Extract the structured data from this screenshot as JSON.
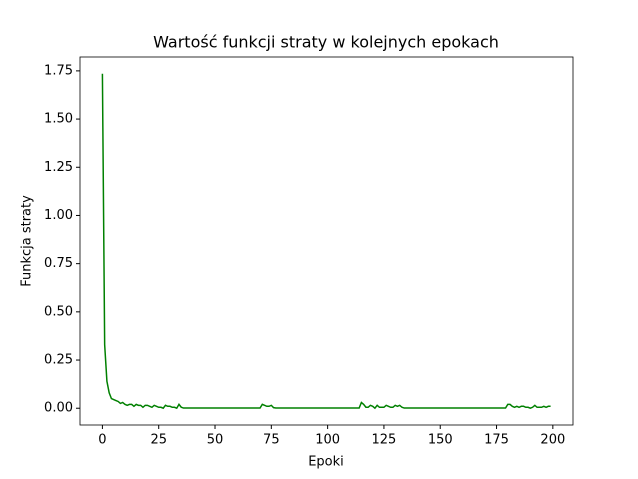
{
  "chart_data": {
    "type": "line",
    "title": "Wartość funkcji straty w kolejnych epokach",
    "x_label": "Epoki",
    "y_label": "Funkcja straty",
    "x": [
      0,
      1,
      2,
      3,
      4,
      5,
      6,
      7,
      8,
      9,
      10,
      11,
      12,
      13,
      14,
      15,
      16,
      17,
      18,
      19,
      20,
      21,
      22,
      23,
      24,
      25,
      26,
      27,
      28,
      29,
      30,
      31,
      32,
      33,
      34,
      35,
      36,
      37,
      38,
      39,
      40,
      41,
      42,
      43,
      44,
      45,
      46,
      47,
      48,
      49,
      50,
      51,
      52,
      53,
      54,
      55,
      56,
      57,
      58,
      59,
      60,
      61,
      62,
      63,
      64,
      65,
      66,
      67,
      68,
      69,
      70,
      71,
      72,
      73,
      74,
      75,
      76,
      77,
      78,
      79,
      80,
      81,
      82,
      83,
      84,
      85,
      86,
      87,
      88,
      89,
      90,
      91,
      92,
      93,
      94,
      95,
      96,
      97,
      98,
      99,
      100,
      101,
      102,
      103,
      104,
      105,
      106,
      107,
      108,
      109,
      110,
      111,
      112,
      113,
      114,
      115,
      116,
      117,
      118,
      119,
      120,
      121,
      122,
      123,
      124,
      125,
      126,
      127,
      128,
      129,
      130,
      131,
      132,
      133,
      134,
      135,
      136,
      137,
      138,
      139,
      140,
      141,
      142,
      143,
      144,
      145,
      146,
      147,
      148,
      149,
      150,
      151,
      152,
      153,
      154,
      155,
      156,
      157,
      158,
      159,
      160,
      161,
      162,
      163,
      164,
      165,
      166,
      167,
      168,
      169,
      170,
      171,
      172,
      173,
      174,
      175,
      176,
      177,
      178,
      179,
      180,
      181,
      182,
      183,
      184,
      185,
      186,
      187,
      188,
      189,
      190,
      191,
      192,
      193,
      194,
      195,
      196,
      197,
      198,
      199
    ],
    "series": [
      {
        "color": "#008000",
        "values": [
          1.735,
          0.33,
          0.14,
          0.08,
          0.05,
          0.045,
          0.04,
          0.035,
          0.025,
          0.03,
          0.02,
          0.015,
          0.02,
          0.02,
          0.01,
          0.02,
          0.015,
          0.015,
          0.005,
          0.015,
          0.015,
          0.01,
          0.005,
          0.015,
          0.01,
          0.005,
          0.005,
          0.0,
          0.015,
          0.01,
          0.01,
          0.005,
          0.005,
          0.0,
          0.02,
          0.005,
          0.001,
          0.001,
          0.001,
          0.001,
          0.001,
          0.001,
          0.001,
          0.001,
          0.001,
          0.001,
          0.001,
          0.001,
          0.001,
          0.001,
          0.001,
          0.001,
          0.001,
          0.001,
          0.001,
          0.001,
          0.001,
          0.001,
          0.001,
          0.001,
          0.001,
          0.001,
          0.001,
          0.001,
          0.001,
          0.001,
          0.001,
          0.001,
          0.001,
          0.001,
          0.001,
          0.02,
          0.015,
          0.01,
          0.01,
          0.015,
          0.003,
          0.001,
          0.001,
          0.001,
          0.001,
          0.001,
          0.001,
          0.001,
          0.001,
          0.001,
          0.001,
          0.001,
          0.001,
          0.001,
          0.001,
          0.001,
          0.001,
          0.001,
          0.001,
          0.001,
          0.001,
          0.001,
          0.001,
          0.001,
          0.001,
          0.001,
          0.001,
          0.001,
          0.001,
          0.001,
          0.001,
          0.001,
          0.001,
          0.001,
          0.001,
          0.001,
          0.001,
          0.001,
          0.001,
          0.03,
          0.02,
          0.005,
          0.005,
          0.015,
          0.01,
          0.0,
          0.015,
          0.005,
          0.005,
          0.005,
          0.015,
          0.01,
          0.005,
          0.005,
          0.015,
          0.01,
          0.015,
          0.005,
          0.001,
          0.001,
          0.001,
          0.001,
          0.001,
          0.001,
          0.001,
          0.001,
          0.001,
          0.001,
          0.001,
          0.001,
          0.001,
          0.001,
          0.001,
          0.001,
          0.001,
          0.001,
          0.001,
          0.001,
          0.001,
          0.001,
          0.001,
          0.001,
          0.001,
          0.001,
          0.001,
          0.001,
          0.001,
          0.001,
          0.001,
          0.001,
          0.001,
          0.001,
          0.001,
          0.001,
          0.001,
          0.001,
          0.001,
          0.001,
          0.001,
          0.001,
          0.001,
          0.001,
          0.001,
          0.001,
          0.02,
          0.02,
          0.01,
          0.005,
          0.01,
          0.005,
          0.01,
          0.01,
          0.005,
          0.005,
          0.0,
          0.005,
          0.015,
          0.005,
          0.005,
          0.005,
          0.01,
          0.005,
          0.01,
          0.01
        ]
      }
    ],
    "xlim": [
      -9.95,
      208.95
    ],
    "ylim": [
      -0.087,
      1.822
    ],
    "xticks": [
      0,
      25,
      50,
      75,
      100,
      125,
      150,
      175,
      200
    ],
    "yticks": [
      {
        "value": 0,
        "label": "0.00"
      },
      {
        "value": 0.25,
        "label": "0.25"
      },
      {
        "value": 0.5,
        "label": "0.50"
      },
      {
        "value": 0.75,
        "label": "0.75"
      },
      {
        "value": 1,
        "label": "1.00"
      },
      {
        "value": 1.25,
        "label": "1.25"
      },
      {
        "value": 1.5,
        "label": "1.50"
      },
      {
        "value": 1.75,
        "label": "1.75"
      }
    ]
  }
}
